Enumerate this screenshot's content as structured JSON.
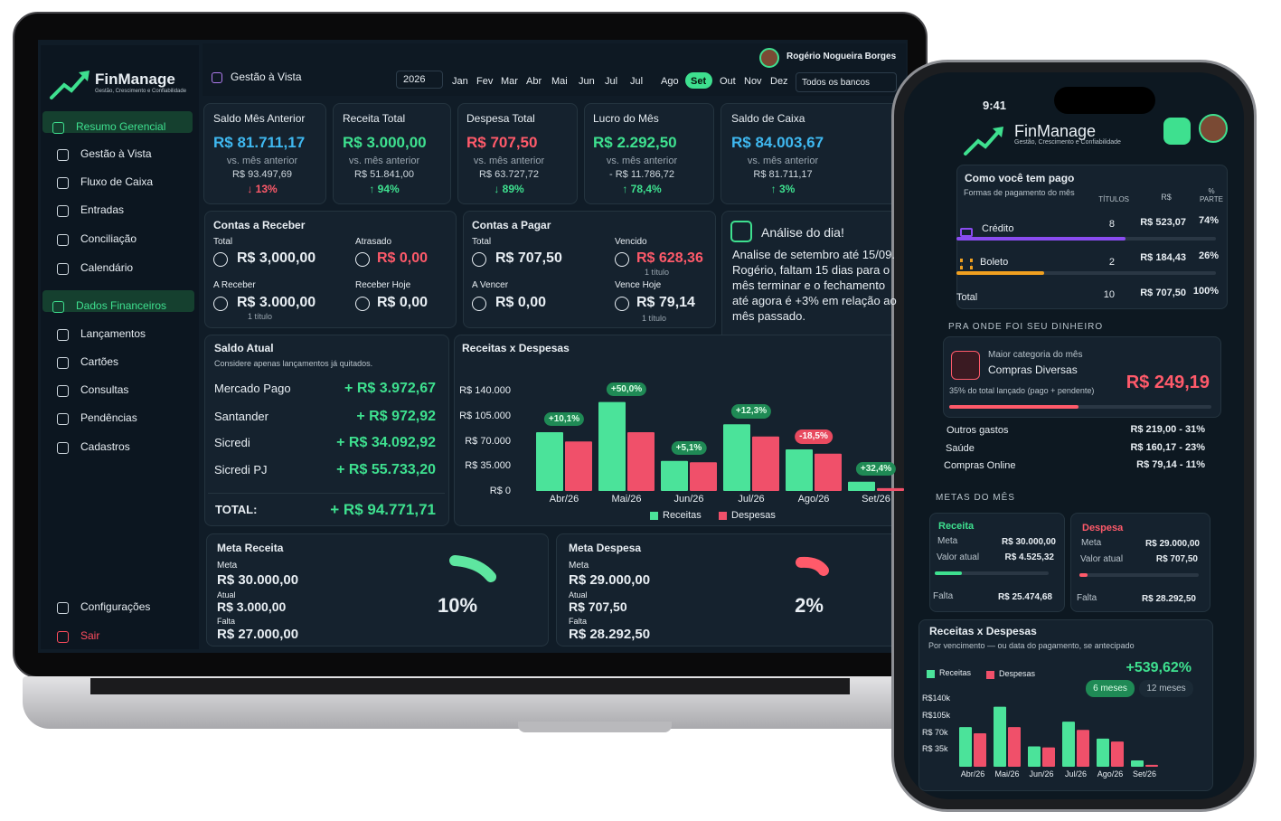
{
  "laptop": {
    "brand": "FinManage",
    "tagline": "Gestão, Crescimento e Confiabilidade",
    "user": "Rogério Nogueira Borges",
    "menu": [
      "Resumo Gerencial",
      "Gestão à Vista",
      "Fluxo de Caixa",
      "Entradas",
      "Conciliação",
      "Calendário",
      "Dados Financeiros",
      "Lançamentos",
      "Cartões",
      "Consultas",
      "Pendências",
      "Cadastros",
      "Configurações",
      "Sair"
    ],
    "header": {
      "title": "Gestão à Vista",
      "year": "2026",
      "months": [
        "Jan",
        "Fev",
        "Mar",
        "Abr",
        "Mai",
        "Jun",
        "Jul",
        "Jul",
        "Ago",
        "Set",
        "Out",
        "Nov",
        "Dez"
      ],
      "active_month": "Set",
      "bank_filter": "Todos os bancos"
    },
    "kpis": [
      {
        "title": "Saldo Mês Anterior",
        "value": "R$ 81.711,17",
        "color": "#3fb8f0",
        "sub": "vs. mês anterior",
        "prev": "R$ 93.497,69",
        "change": "↓ 13%",
        "change_color": "#ff5a6a"
      },
      {
        "title": "Receita Total",
        "value": "R$ 3.000,00",
        "color": "#3ee08f",
        "sub": "vs. mês anterior",
        "prev": "R$ 51.841,00",
        "change": "↑ 94%",
        "change_color": "#3ee08f"
      },
      {
        "title": "Despesa Total",
        "value": "R$ 707,50",
        "color": "#ff5a6a",
        "sub": "vs. mês anterior",
        "prev": "R$ 63.727,72",
        "change": "↓ 89%",
        "change_color": "#3ee08f"
      },
      {
        "title": "Lucro do Mês",
        "value": "R$ 2.292,50",
        "color": "#3ee08f",
        "sub": "vs. mês anterior",
        "prev": "- R$ 11.786,72",
        "change": "↑ 78,4%",
        "change_color": "#3ee08f"
      },
      {
        "title": "Saldo de Caixa",
        "value": "R$ 84.003,67",
        "color": "#3fb8f0",
        "sub": "vs. mês anterior",
        "prev": "R$ 81.711,17",
        "change": "↑ 3%",
        "change_color": "#3ee08f"
      }
    ],
    "receber": {
      "title": "Contas a Receber",
      "total_label": "Total",
      "total": "R$ 3,000,00",
      "late_label": "Atrasado",
      "late": "R$ 0,00",
      "due_label": "A Receber",
      "due": "R$ 3.000,00",
      "due_note": "1 título",
      "today_label": "Receber Hoje",
      "today": "R$ 0,00"
    },
    "pagar": {
      "title": "Contas a Pagar",
      "total_label": "Total",
      "total": "R$ 707,50",
      "late_label": "Vencido",
      "late": "R$ 628,36",
      "late_note": "1 título",
      "due_label": "A Vencer",
      "due": "R$ 0,00",
      "today_label": "Vence Hoje",
      "today": "R$ 79,14",
      "today_note": "1 título"
    },
    "analise": {
      "title": "Análise do dia!",
      "text": "Analise de setembro até 15/09. Rogério, faltam 15 dias para o mês terminar e o fechamento até agora é +3% em relação ao mês passado."
    },
    "saldo": {
      "title": "Saldo Atual",
      "subtitle": "Considere apenas lançamentos já quitados.",
      "rows": [
        [
          "Mercado Pago",
          "+ R$ 3.972,67"
        ],
        [
          "Santander",
          "+ R$ 972,92"
        ],
        [
          "Sicredi",
          "+ R$ 34.092,92"
        ],
        [
          "Sicredi PJ",
          "+ R$ 55.733,20"
        ]
      ],
      "total_label": "TOTAL:",
      "total": "+ R$ 94.771,71"
    },
    "metas": [
      {
        "title": "Meta Receita",
        "meta_label": "Meta",
        "meta": "R$ 30.000,00",
        "atual_label": "Atual",
        "atual": "R$ 3.000,00",
        "falta_label": "Falta",
        "falta": "R$ 27.000,00",
        "pct": "10%",
        "color": "#5ee6a0"
      },
      {
        "title": "Meta Despesa",
        "meta_label": "Meta",
        "meta": "R$ 29.000,00",
        "atual_label": "Atual",
        "atual": "R$ 707,50",
        "falta_label": "Falta",
        "falta": "R$ 28.292,50",
        "pct": "2%",
        "color": "#ff5a6a"
      }
    ]
  },
  "phone": {
    "time": "9:41",
    "brand": "FinManage",
    "tagline": "Gestão, Crescimento e Confiabilidade",
    "pago": {
      "title": "Como você tem pago",
      "subtitle": "Formas de pagamento do mês",
      "columns": [
        "TÍTULOS",
        "R$",
        "% PARTE"
      ],
      "rows": [
        [
          "Crédito",
          "8",
          "R$ 523,07",
          "74%"
        ],
        [
          "Boleto",
          "2",
          "R$ 184,43",
          "26%"
        ],
        [
          "Total",
          "10",
          "R$ 707,50",
          "100%"
        ]
      ]
    },
    "onde": {
      "section": "PRA ONDE FOI SEU DINHEIRO",
      "top_label": "Maior categoria do mês",
      "top_name": "Compras Diversas",
      "top_value": "R$ 249,19",
      "top_note": "35% do total lançado (pago + pendente)",
      "others": [
        [
          "Outros gastos",
          "R$ 219,00 - 31%"
        ],
        [
          "Saúde",
          "R$ 160,17 - 23%"
        ],
        [
          "Compras Online",
          "R$ 79,14 - 11%"
        ]
      ]
    },
    "metas": {
      "section": "METAS DO MÊS",
      "cards": [
        {
          "title": "Receita",
          "meta_label": "Meta",
          "meta": "R$ 30.000,00",
          "atual_label": "Valor atual",
          "atual": "R$ 4.525,32",
          "falta_label": "Falta",
          "falta": "R$ 25.474,68",
          "color": "#3ee08f"
        },
        {
          "title": "Despesa",
          "meta_label": "Meta",
          "meta": "R$ 29.000,00",
          "atual_label": "Valor atual",
          "atual": "R$ 707,50",
          "falta_label": "Falta",
          "falta": "R$ 28.292,50",
          "color": "#ff5a6a"
        }
      ]
    }
  },
  "chart_data": [
    {
      "type": "bar",
      "title": "Receitas x Despesas",
      "categories": [
        "Abr/26",
        "Mai/26",
        "Jun/26",
        "Jul/26",
        "Ago/26",
        "Set/26"
      ],
      "series": [
        {
          "name": "Receitas",
          "color": "#4be39a",
          "values": [
            82000,
            124000,
            42000,
            93000,
            58000,
            13000
          ]
        },
        {
          "name": "Despesas",
          "color": "#f0506a",
          "values": [
            69000,
            82000,
            40000,
            76000,
            52000,
            4000
          ]
        }
      ],
      "annotations": [
        "+10,1%",
        "+50,0%",
        "+5,1%",
        "+12,3%",
        "-18,5%",
        "+32,4%"
      ],
      "ylim": [
        0,
        140000
      ],
      "yticks": [
        {
          "value": 0,
          "label": "R$ 0"
        },
        {
          "value": 35000,
          "label": "R$ 35.000"
        },
        {
          "value": 70000,
          "label": "R$ 70.000"
        },
        {
          "value": 105000,
          "label": "R$ 105.000"
        },
        {
          "value": 140000,
          "label": "R$ 140.000"
        }
      ],
      "grid": false,
      "legend": "bottom"
    },
    {
      "type": "bar",
      "title": "Receitas x Despesas",
      "subtitle": "Por vencimento — ou data do pagamento, se antecipado",
      "total": "+539,62%",
      "toggles": [
        "6 meses",
        "12 meses"
      ],
      "categories": [
        "Abr/26",
        "Mai/26",
        "Jun/26",
        "Jul/26",
        "Ago/26",
        "Set/26"
      ],
      "series": [
        {
          "name": "Receitas",
          "color": "#4be39a",
          "values": [
            82000,
            124000,
            42000,
            93000,
            58000,
            13000
          ]
        },
        {
          "name": "Despesas",
          "color": "#f0506a",
          "values": [
            69000,
            82000,
            40000,
            76000,
            52000,
            4000
          ]
        }
      ],
      "ylim": [
        0,
        140000
      ],
      "yticks": [
        {
          "value": 35000,
          "label": "R$ 35k"
        },
        {
          "value": 70000,
          "label": "R$ 70k"
        },
        {
          "value": 105000,
          "label": "R$105k"
        },
        {
          "value": 140000,
          "label": "R$140k"
        }
      ],
      "grid": false,
      "legend": "top"
    }
  ]
}
